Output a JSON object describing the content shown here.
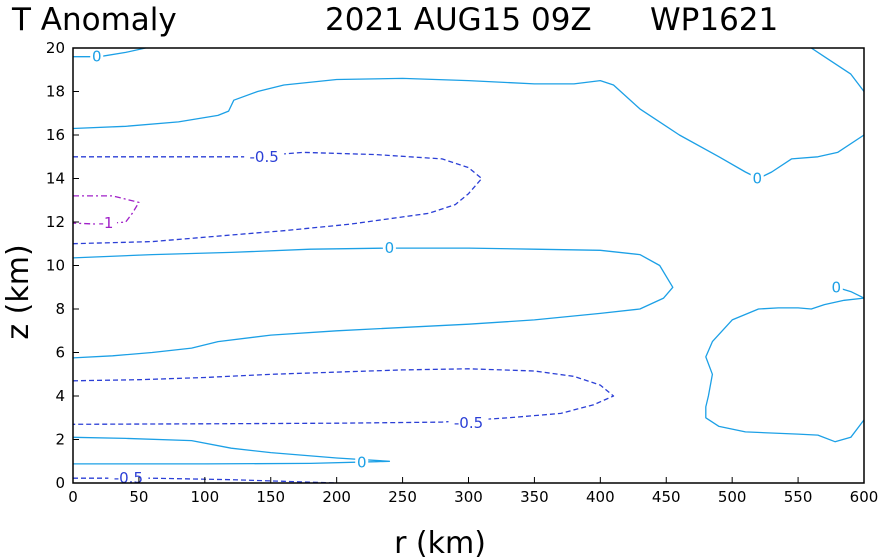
{
  "chart_data": {
    "type": "contour",
    "title": {
      "left": "T Anomaly",
      "center": "2021 AUG15 09Z",
      "right": "WP1621"
    },
    "xlabel": "r (km)",
    "ylabel": "z (km)",
    "xlim": [
      0,
      600
    ],
    "ylim": [
      0,
      20
    ],
    "xticks": [
      0,
      50,
      100,
      150,
      200,
      250,
      300,
      350,
      400,
      450,
      500,
      550,
      600
    ],
    "yticks": [
      0,
      2,
      4,
      6,
      8,
      10,
      12,
      14,
      16,
      18,
      20
    ],
    "colors": {
      "zero": "#1ca0e6",
      "neg_half": "#2b3fd6",
      "neg_one": "#a020c8"
    },
    "contours": [
      {
        "level": 0,
        "label": "0",
        "style": "solid",
        "label_at": [
          18,
          19.6
        ],
        "points": [
          [
            0,
            19.6
          ],
          [
            20,
            19.6
          ],
          [
            40,
            19.8
          ],
          [
            55,
            20
          ]
        ]
      },
      {
        "level": 0,
        "label": "",
        "style": "solid",
        "points": [
          [
            0,
            16.3
          ],
          [
            40,
            16.4
          ],
          [
            80,
            16.6
          ],
          [
            110,
            16.9
          ],
          [
            118,
            17.1
          ],
          [
            122,
            17.6
          ],
          [
            140,
            18.0
          ],
          [
            160,
            18.3
          ],
          [
            200,
            18.55
          ],
          [
            250,
            18.6
          ],
          [
            300,
            18.5
          ],
          [
            350,
            18.35
          ],
          [
            380,
            18.35
          ],
          [
            400,
            18.5
          ],
          [
            410,
            18.3
          ],
          [
            430,
            17.2
          ],
          [
            460,
            16.0
          ],
          [
            490,
            15.0
          ],
          [
            510,
            14.3
          ],
          [
            520,
            14.0
          ],
          [
            530,
            14.3
          ],
          [
            545,
            14.9
          ],
          [
            565,
            15.0
          ],
          [
            580,
            15.2
          ],
          [
            600,
            16.0
          ]
        ]
      },
      {
        "level": 0,
        "label": "0",
        "style": "solid",
        "label_at": [
          519,
          14.0
        ],
        "points": []
      },
      {
        "level": 0,
        "label": "",
        "style": "solid",
        "points": [
          [
            560,
            20
          ],
          [
            570,
            19.6
          ],
          [
            590,
            18.8
          ],
          [
            600,
            18.0
          ]
        ]
      },
      {
        "level": -0.5,
        "label": "-0.5",
        "style": "dashed",
        "label_at": [
          145,
          15.0
        ],
        "points": [
          [
            0,
            15.0
          ],
          [
            40,
            15.0
          ],
          [
            80,
            15.0
          ],
          [
            130,
            15.0
          ],
          [
            175,
            15.2
          ],
          [
            230,
            15.1
          ],
          [
            280,
            14.9
          ],
          [
            300,
            14.5
          ],
          [
            310,
            14.0
          ],
          [
            300,
            13.3
          ],
          [
            290,
            12.8
          ],
          [
            270,
            12.4
          ],
          [
            210,
            11.9
          ],
          [
            160,
            11.6
          ],
          [
            120,
            11.4
          ],
          [
            60,
            11.1
          ],
          [
            0,
            11.0
          ]
        ]
      },
      {
        "level": -1,
        "label": "-1",
        "style": "dashdot",
        "label_at": [
          25,
          11.95
        ],
        "points": [
          [
            0,
            13.2
          ],
          [
            30,
            13.2
          ],
          [
            50,
            12.9
          ],
          [
            45,
            12.4
          ],
          [
            40,
            12.0
          ],
          [
            20,
            11.9
          ],
          [
            0,
            11.95
          ]
        ]
      },
      {
        "level": 0,
        "label": "0",
        "style": "solid",
        "label_at": [
          240,
          10.8
        ],
        "points": [
          [
            0,
            10.35
          ],
          [
            60,
            10.5
          ],
          [
            120,
            10.6
          ],
          [
            180,
            10.75
          ],
          [
            240,
            10.8
          ],
          [
            300,
            10.8
          ],
          [
            350,
            10.75
          ],
          [
            400,
            10.7
          ],
          [
            430,
            10.5
          ],
          [
            445,
            10.0
          ],
          [
            455,
            9.0
          ],
          [
            448,
            8.5
          ],
          [
            430,
            8.0
          ],
          [
            400,
            7.8
          ],
          [
            350,
            7.5
          ],
          [
            300,
            7.3
          ],
          [
            200,
            7.0
          ],
          [
            150,
            6.8
          ],
          [
            110,
            6.5
          ],
          [
            90,
            6.2
          ],
          [
            60,
            6.0
          ],
          [
            30,
            5.85
          ],
          [
            0,
            5.75
          ]
        ]
      },
      {
        "level": 0,
        "label": "0",
        "style": "solid",
        "label_at": [
          579,
          9.0
        ],
        "points": [
          [
            600,
            8.5
          ],
          [
            585,
            8.4
          ],
          [
            570,
            8.2
          ],
          [
            560,
            8.0
          ],
          [
            550,
            8.05
          ],
          [
            535,
            8.05
          ],
          [
            520,
            8.0
          ],
          [
            500,
            7.5
          ],
          [
            485,
            6.5
          ],
          [
            480,
            5.8
          ],
          [
            485,
            5.0
          ],
          [
            482,
            4.0
          ],
          [
            480,
            3.5
          ],
          [
            480,
            3.0
          ],
          [
            490,
            2.6
          ],
          [
            510,
            2.35
          ],
          [
            550,
            2.25
          ],
          [
            565,
            2.2
          ],
          [
            578,
            1.9
          ],
          [
            590,
            2.1
          ],
          [
            600,
            2.9
          ]
        ]
      },
      {
        "level": 0,
        "label": "",
        "style": "solid",
        "points": [
          [
            579,
            9.0
          ],
          [
            590,
            8.8
          ],
          [
            600,
            8.5
          ]
        ]
      },
      {
        "level": -0.5,
        "label": "",
        "style": "dashed",
        "points": [
          [
            0,
            4.7
          ],
          [
            50,
            4.75
          ],
          [
            100,
            4.85
          ],
          [
            150,
            5.0
          ],
          [
            200,
            5.1
          ],
          [
            250,
            5.2
          ],
          [
            300,
            5.25
          ],
          [
            350,
            5.15
          ],
          [
            380,
            4.9
          ],
          [
            400,
            4.5
          ],
          [
            410,
            4.0
          ],
          [
            395,
            3.6
          ],
          [
            370,
            3.2
          ],
          [
            330,
            3.0
          ],
          [
            280,
            2.8
          ],
          [
            200,
            2.75
          ],
          [
            100,
            2.72
          ],
          [
            0,
            2.7
          ]
        ]
      },
      {
        "level": -0.5,
        "label": "-0.5",
        "style": "dashed",
        "label_at": [
          300,
          2.75
        ],
        "points": []
      },
      {
        "level": 0,
        "label": "0",
        "style": "solid",
        "label_at": [
          219,
          0.95
        ],
        "points": [
          [
            0,
            2.1
          ],
          [
            40,
            2.05
          ],
          [
            90,
            1.95
          ],
          [
            120,
            1.6
          ],
          [
            150,
            1.4
          ],
          [
            200,
            1.15
          ],
          [
            240,
            1.0
          ],
          [
            230,
            0.98
          ],
          [
            180,
            0.9
          ],
          [
            100,
            0.88
          ],
          [
            0,
            0.88
          ]
        ]
      },
      {
        "level": -0.5,
        "label": "-0.5",
        "style": "dashed",
        "label_at": [
          42,
          0.22
        ],
        "points": [
          [
            0,
            0.22
          ],
          [
            60,
            0.22
          ],
          [
            120,
            0.15
          ],
          [
            160,
            0.08
          ],
          [
            200,
            0.0
          ]
        ]
      }
    ]
  }
}
